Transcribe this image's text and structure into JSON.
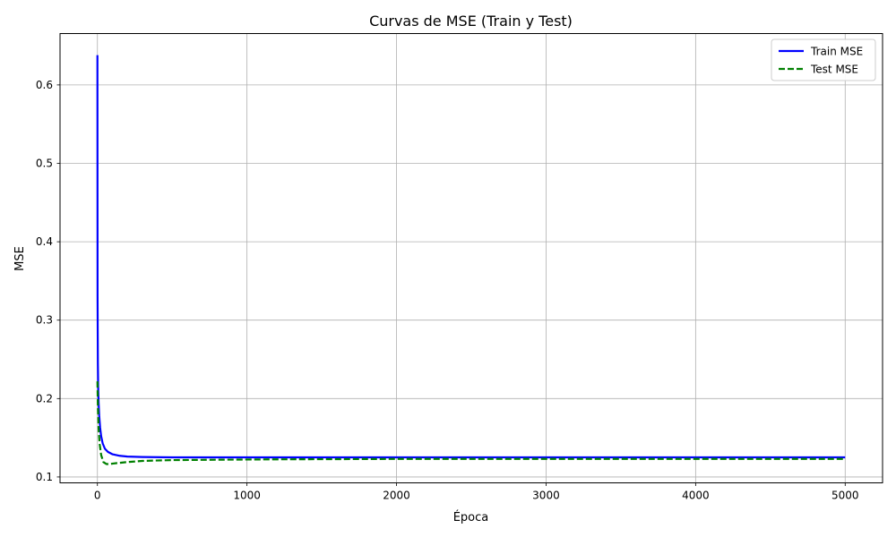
{
  "chart_data": {
    "type": "line",
    "title": "Curvas de MSE (Train y Test)",
    "xlabel": "Época",
    "ylabel": "MSE",
    "xlim": [
      -250,
      5250
    ],
    "ylim": [
      0.0925,
      0.6655
    ],
    "xticks": [
      0,
      1000,
      2000,
      3000,
      4000,
      5000
    ],
    "yticks": [
      0.1,
      0.2,
      0.3,
      0.4,
      0.5,
      0.6
    ],
    "xtick_labels": [
      "0",
      "1000",
      "2000",
      "3000",
      "4000",
      "5000"
    ],
    "ytick_labels": [
      "0.1",
      "0.2",
      "0.3",
      "0.4",
      "0.5",
      "0.6"
    ],
    "grid": true,
    "legend_position": "top-right",
    "series": [
      {
        "name": "Train MSE",
        "color": "#0000ff",
        "style": "solid",
        "x": [
          0,
          1,
          3,
          5,
          8,
          12,
          18,
          25,
          35,
          50,
          70,
          100,
          150,
          200,
          300,
          500,
          1000,
          2000,
          3000,
          4000,
          5000
        ],
        "y": [
          0.638,
          0.33,
          0.245,
          0.215,
          0.195,
          0.178,
          0.163,
          0.152,
          0.143,
          0.136,
          0.132,
          0.129,
          0.127,
          0.126,
          0.1255,
          0.125,
          0.125,
          0.125,
          0.125,
          0.125,
          0.125
        ]
      },
      {
        "name": "Test MSE",
        "color": "#008000",
        "style": "dashed",
        "x": [
          0,
          3,
          8,
          15,
          25,
          40,
          60,
          80,
          120,
          200,
          300,
          500,
          800,
          1200,
          2000,
          3000,
          4000,
          5000
        ],
        "y": [
          0.222,
          0.19,
          0.162,
          0.142,
          0.128,
          0.119,
          0.1165,
          0.1165,
          0.1175,
          0.119,
          0.1205,
          0.1215,
          0.122,
          0.1225,
          0.123,
          0.123,
          0.123,
          0.123
        ]
      }
    ]
  }
}
